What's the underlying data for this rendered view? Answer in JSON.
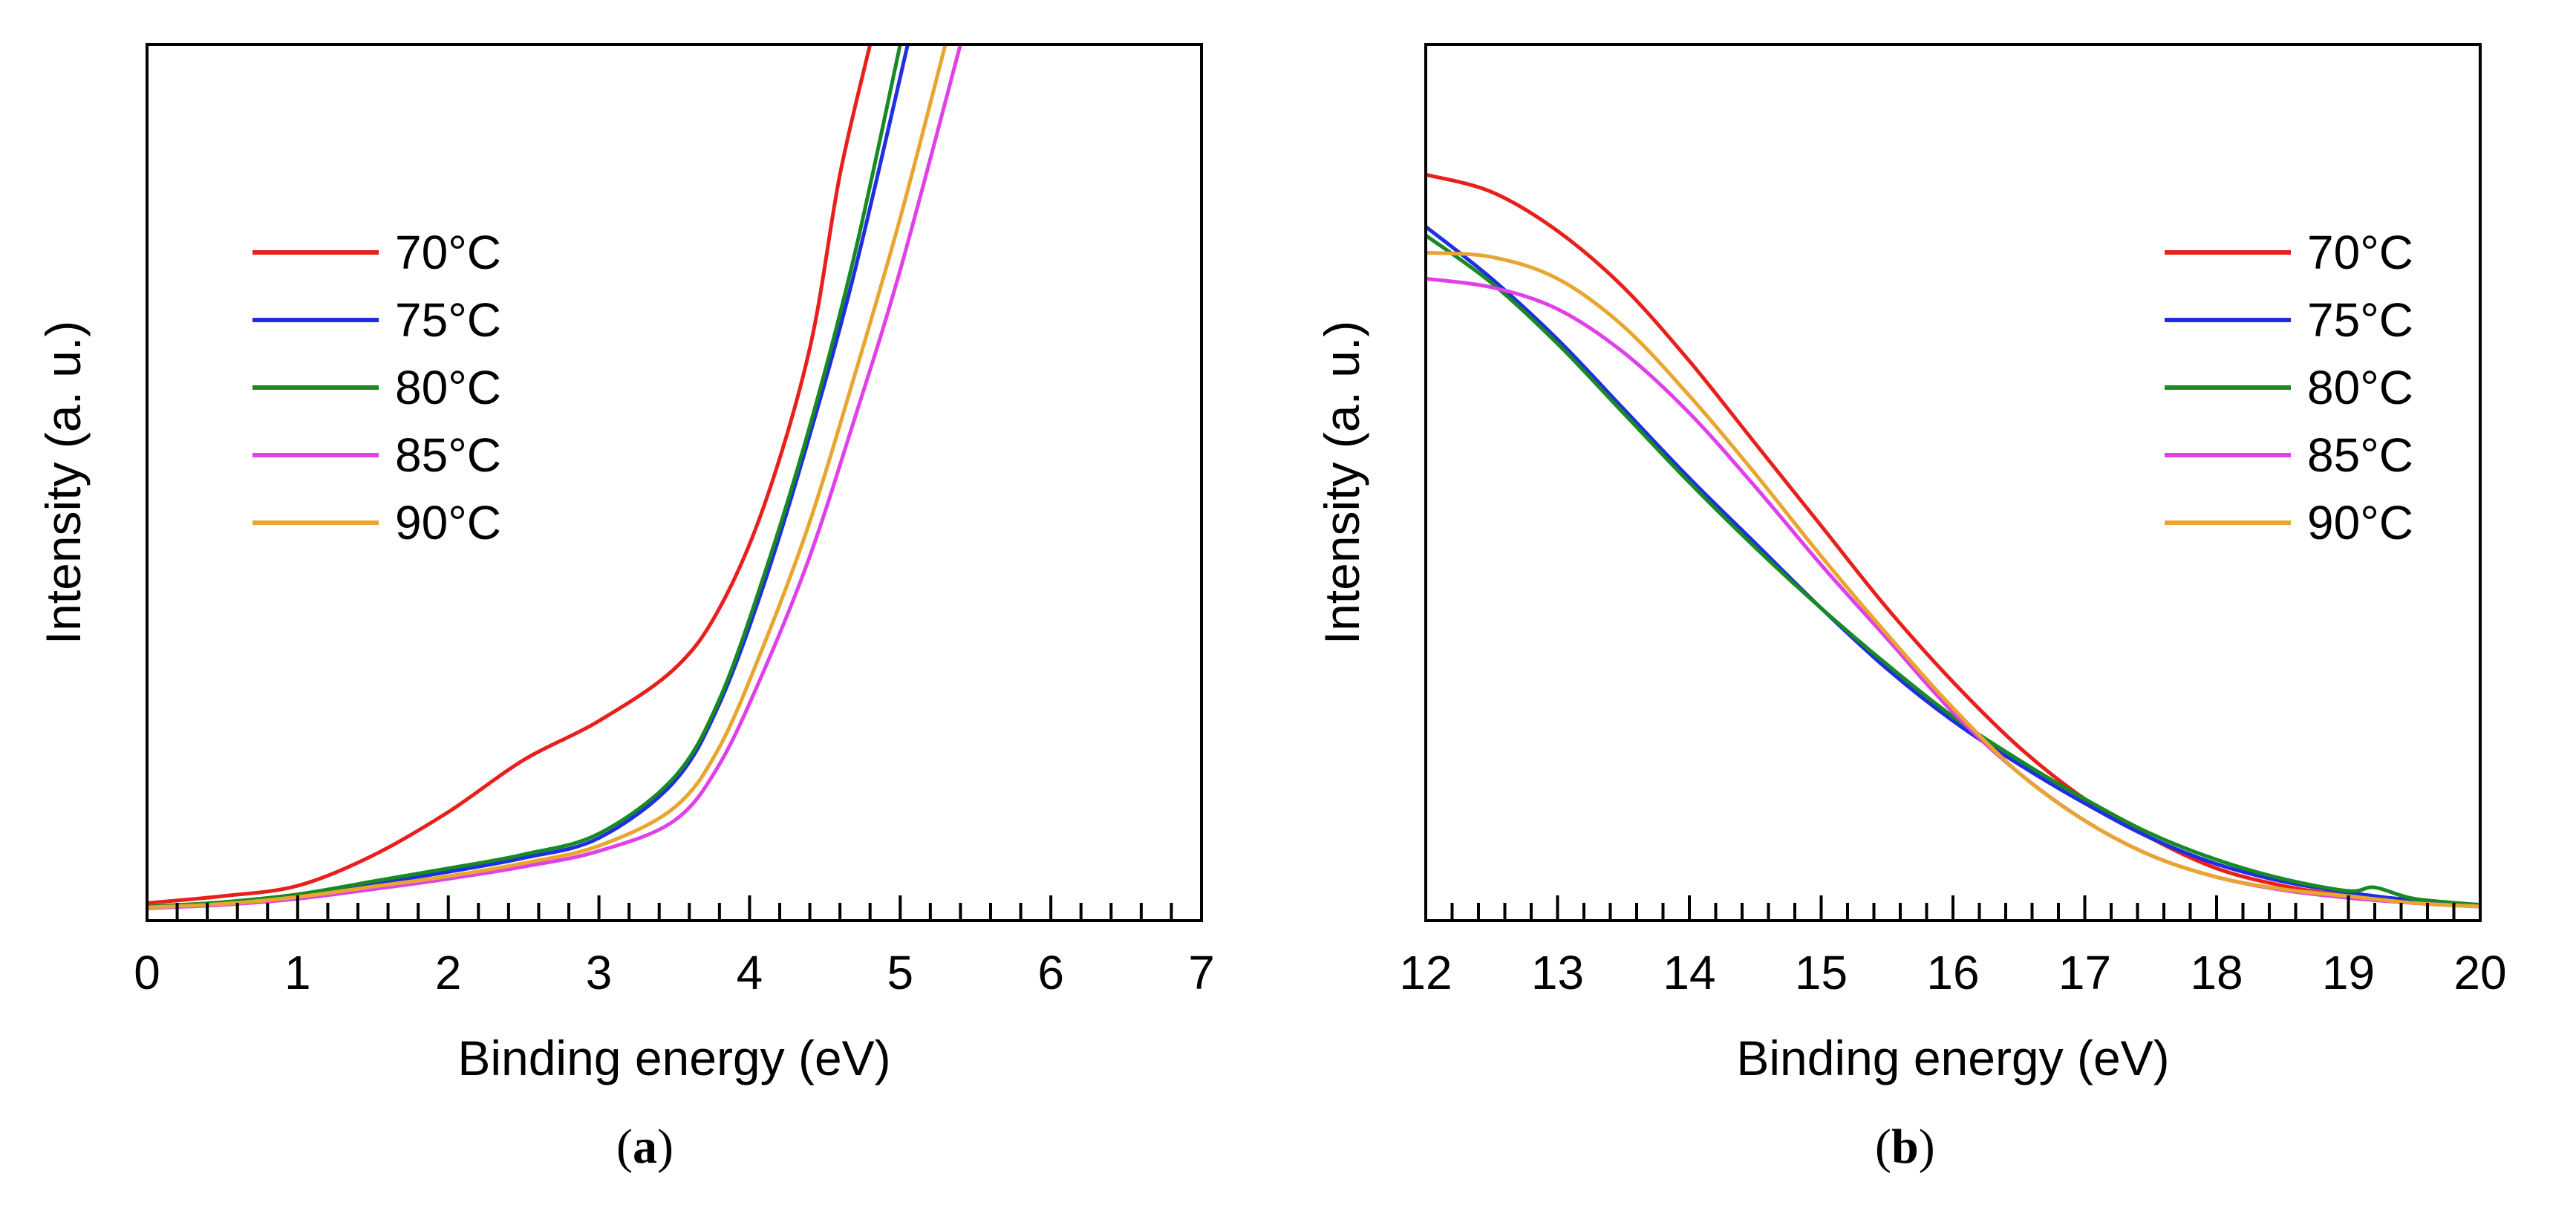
{
  "chart_data": [
    {
      "type": "line",
      "caption": "a",
      "xlabel": "Binding energy (eV)",
      "ylabel": "Intensity (a. u.)",
      "xlim": [
        0,
        7
      ],
      "ylim": [
        0,
        100
      ],
      "xticks": [
        "0",
        "1",
        "2",
        "3",
        "4",
        "5",
        "6",
        "7"
      ],
      "grid": false,
      "legend_position": "upper-left",
      "series": [
        {
          "name": "70°C",
          "color": "#e8201c",
          "x": [
            0,
            0.5,
            1.0,
            1.5,
            2.0,
            2.5,
            3.0,
            3.5,
            3.8,
            4.1,
            4.4,
            4.6,
            4.8
          ],
          "y": [
            1.0,
            1.8,
            3.0,
            6.5,
            11.5,
            17.5,
            22.0,
            28.0,
            35.0,
            47.0,
            65.0,
            85.0,
            100.0
          ]
        },
        {
          "name": "75°C",
          "color": "#1f2ee0",
          "x": [
            0,
            0.5,
            1.0,
            1.5,
            2.0,
            2.5,
            3.0,
            3.5,
            3.8,
            4.1,
            4.4,
            4.7,
            5.05
          ],
          "y": [
            0.5,
            1.0,
            1.8,
            3.2,
            4.6,
            6.2,
            8.5,
            15.0,
            24.0,
            38.0,
            55.0,
            74.0,
            100.0
          ]
        },
        {
          "name": "80°C",
          "color": "#178a23",
          "x": [
            0,
            0.5,
            1.0,
            1.5,
            2.0,
            2.5,
            3.0,
            3.5,
            3.8,
            4.1,
            4.4,
            4.7,
            5.0
          ],
          "y": [
            0.6,
            1.1,
            2.0,
            3.5,
            5.0,
            6.6,
            9.0,
            15.5,
            24.5,
            39.0,
            56.0,
            76.0,
            100.0
          ]
        },
        {
          "name": "85°C",
          "color": "#e040e8",
          "x": [
            0,
            0.5,
            1.0,
            1.5,
            2.0,
            2.5,
            3.0,
            3.5,
            3.8,
            4.1,
            4.4,
            4.7,
            5.0,
            5.4
          ],
          "y": [
            0.4,
            0.8,
            1.5,
            2.6,
            3.8,
            5.2,
            7.0,
            10.5,
            17.0,
            28.0,
            41.0,
            57.0,
            74.0,
            100.0
          ]
        },
        {
          "name": "90°C",
          "color": "#e8a530",
          "x": [
            0,
            0.5,
            1.0,
            1.5,
            2.0,
            2.5,
            3.0,
            3.5,
            3.8,
            4.1,
            4.4,
            4.7,
            5.0,
            5.3
          ],
          "y": [
            0.5,
            0.9,
            1.7,
            2.9,
            4.1,
            5.6,
            7.6,
            12.0,
            19.0,
            31.0,
            45.0,
            62.0,
            80.0,
            100.0
          ]
        }
      ]
    },
    {
      "type": "line",
      "caption": "b",
      "xlabel": "Binding energy (eV)",
      "ylabel": "Intensity (a. u.)",
      "xlim": [
        12,
        20
      ],
      "ylim": [
        0,
        100
      ],
      "xticks": [
        "12",
        "13",
        "14",
        "15",
        "16",
        "17",
        "18",
        "19",
        "20"
      ],
      "grid": false,
      "legend_position": "upper-right",
      "series": [
        {
          "name": "70°C",
          "color": "#e8201c",
          "x": [
            12,
            12.5,
            13,
            13.5,
            14,
            14.5,
            15,
            15.5,
            16,
            16.5,
            17,
            17.5,
            18,
            18.5,
            19,
            19.5,
            20
          ],
          "y": [
            85.0,
            83.0,
            78.5,
            72.0,
            63.5,
            54.0,
            44.5,
            35.0,
            26.5,
            19.0,
            13.0,
            8.5,
            5.0,
            3.0,
            1.8,
            1.0,
            0.6
          ]
        },
        {
          "name": "75°C",
          "color": "#1f2ee0",
          "x": [
            12,
            12.5,
            13,
            13.5,
            14,
            14.5,
            15,
            15.5,
            16,
            16.5,
            17,
            17.5,
            18,
            18.5,
            19,
            19.5,
            20
          ],
          "y": [
            79.0,
            73.0,
            66.0,
            58.0,
            50.0,
            42.5,
            35.0,
            28.0,
            22.0,
            17.0,
            12.5,
            8.5,
            5.5,
            3.5,
            2.2,
            1.3,
            0.8
          ]
        },
        {
          "name": "80°C",
          "color": "#178a23",
          "x": [
            12,
            12.5,
            13,
            13.5,
            14,
            14.5,
            15,
            15.5,
            16,
            16.5,
            17,
            17.5,
            18,
            18.5,
            19,
            19.2,
            19.5,
            20
          ],
          "y": [
            78.0,
            72.5,
            65.5,
            57.5,
            49.5,
            42.0,
            35.0,
            28.5,
            22.5,
            17.5,
            13.0,
            9.0,
            6.0,
            3.8,
            2.4,
            2.8,
            1.5,
            0.8
          ]
        },
        {
          "name": "85°C",
          "color": "#e040e8",
          "x": [
            12,
            12.5,
            13,
            13.5,
            14,
            14.5,
            15,
            15.5,
            16,
            16.5,
            17,
            17.5,
            18,
            18.5,
            19,
            19.5,
            20
          ],
          "y": [
            73.0,
            72.0,
            69.5,
            64.5,
            57.5,
            49.0,
            40.0,
            31.5,
            23.0,
            16.0,
            10.5,
            6.5,
            4.0,
            2.5,
            1.6,
            1.0,
            0.6
          ]
        },
        {
          "name": "90°C",
          "color": "#e8a530",
          "x": [
            12,
            12.5,
            13,
            13.5,
            14,
            14.5,
            15,
            15.5,
            16,
            16.5,
            17,
            17.5,
            18,
            18.5,
            19,
            19.5,
            20
          ],
          "y": [
            76.0,
            75.5,
            73.0,
            67.5,
            59.5,
            50.5,
            41.0,
            32.0,
            23.5,
            16.0,
            10.5,
            6.5,
            4.0,
            2.6,
            1.8,
            1.0,
            0.6
          ]
        }
      ]
    }
  ]
}
